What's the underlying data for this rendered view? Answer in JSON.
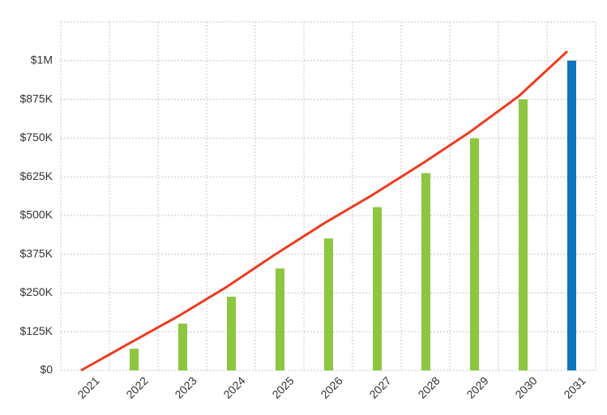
{
  "chart_data": {
    "type": "bar-line",
    "categories": [
      "2021",
      "2022",
      "2023",
      "2024",
      "2025",
      "2026",
      "2027",
      "2028",
      "2029",
      "2030",
      "2031"
    ],
    "series": [
      {
        "type": "bar",
        "values": [
          0,
          70000,
          151000,
          238000,
          329000,
          426000,
          527000,
          637000,
          749000,
          875000,
          1000000
        ],
        "colors": [
          "#8dc63f",
          "#8dc63f",
          "#8dc63f",
          "#8dc63f",
          "#8dc63f",
          "#8dc63f",
          "#8dc63f",
          "#8dc63f",
          "#8dc63f",
          "#8dc63f",
          "#0a75bc"
        ]
      },
      {
        "type": "line",
        "color": "#ee3b1f",
        "values": [
          0,
          88000,
          175000,
          270000,
          375000,
          475000,
          567000,
          666000,
          770000,
          885000,
          1030000
        ]
      }
    ],
    "ylim": [
      0,
      1125000
    ],
    "yticks": [
      {
        "value": 0,
        "label": "$0"
      },
      {
        "value": 125000,
        "label": "$125K"
      },
      {
        "value": 250000,
        "label": "$250K"
      },
      {
        "value": 375000,
        "label": "$375K"
      },
      {
        "value": 500000,
        "label": "$500K"
      },
      {
        "value": 625000,
        "label": "$625K"
      },
      {
        "value": 750000,
        "label": "$750K"
      },
      {
        "value": 875000,
        "label": "$875K"
      },
      {
        "value": 1000000,
        "label": "$1M"
      }
    ],
    "grid": true
  }
}
